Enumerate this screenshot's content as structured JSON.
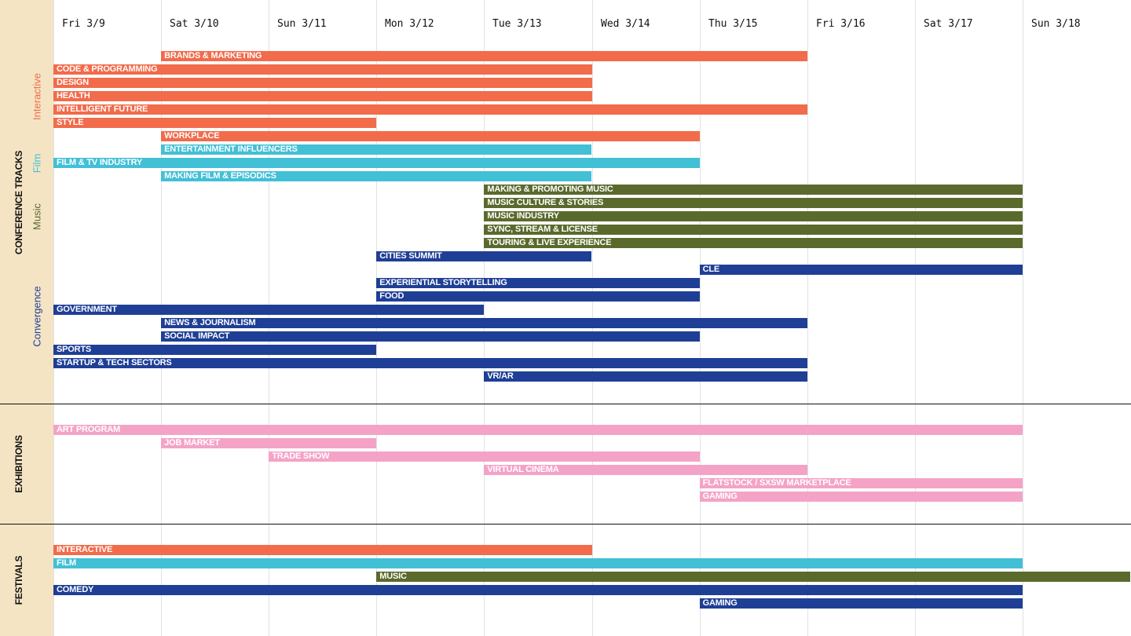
{
  "colors": {
    "interactive": "#f26b4a",
    "film": "#42c0d6",
    "music": "#5a6a2c",
    "convergence": "#1f3f96",
    "exhibition": "#f4a3c7",
    "sidebar": "#f4e4c4"
  },
  "chart_data": {
    "type": "table",
    "days": [
      "Fri 3/9",
      "Sat 3/10",
      "Sun 3/11",
      "Mon 3/12",
      "Tue 3/13",
      "Wed 3/14",
      "Thu 3/15",
      "Fri 3/16",
      "Sat 3/17",
      "Sun 3/18"
    ],
    "sections": [
      {
        "label": "CONFERENCE TRACKS",
        "groups": [
          {
            "label": "Interactive",
            "color": "interactive",
            "bars": [
              {
                "label": "BRANDS & MARKETING",
                "start": 1,
                "end": 7
              },
              {
                "label": "CODE & PROGRAMMING",
                "start": 0,
                "end": 5
              },
              {
                "label": "DESIGN",
                "start": 0,
                "end": 5
              },
              {
                "label": "HEALTH",
                "start": 0,
                "end": 5
              },
              {
                "label": "INTELLIGENT FUTURE",
                "start": 0,
                "end": 7
              },
              {
                "label": "STYLE",
                "start": 0,
                "end": 3
              },
              {
                "label": "WORKPLACE",
                "start": 1,
                "end": 6
              }
            ]
          },
          {
            "label": "Film",
            "color": "film",
            "bars": [
              {
                "label": "ENTERTAINMENT INFLUENCERS",
                "start": 1,
                "end": 5
              },
              {
                "label": "FILM & TV INDUSTRY",
                "start": 0,
                "end": 6
              },
              {
                "label": "MAKING FILM & EPISODICS",
                "start": 1,
                "end": 5
              }
            ]
          },
          {
            "label": "Music",
            "color": "music",
            "bars": [
              {
                "label": "MAKING & PROMOTING MUSIC",
                "start": 4,
                "end": 9
              },
              {
                "label": "MUSIC CULTURE & STORIES",
                "start": 4,
                "end": 9
              },
              {
                "label": "MUSIC INDUSTRY",
                "start": 4,
                "end": 9
              },
              {
                "label": "SYNC, STREAM & LICENSE",
                "start": 4,
                "end": 9
              },
              {
                "label": "TOURING & LIVE EXPERIENCE",
                "start": 4,
                "end": 9
              }
            ]
          },
          {
            "label": "Convergence",
            "color": "convergence",
            "bars": [
              {
                "label": "CITIES SUMMIT",
                "start": 3,
                "end": 5
              },
              {
                "label": "CLE",
                "start": 6,
                "end": 9
              },
              {
                "label": "EXPERIENTIAL STORYTELLING",
                "start": 3,
                "end": 6
              },
              {
                "label": "FOOD",
                "start": 3,
                "end": 6
              },
              {
                "label": "GOVERNMENT",
                "start": 0,
                "end": 4
              },
              {
                "label": "NEWS & JOURNALISM",
                "start": 1,
                "end": 7
              },
              {
                "label": "SOCIAL IMPACT",
                "start": 1,
                "end": 6
              },
              {
                "label": "SPORTS",
                "start": 0,
                "end": 3
              },
              {
                "label": "STARTUP & TECH SECTORS",
                "start": 0,
                "end": 7
              },
              {
                "label": "VR/AR",
                "start": 4,
                "end": 7
              }
            ]
          }
        ]
      },
      {
        "label": "EXHIBITIONS",
        "groups": [
          {
            "label": "",
            "color": "exhibition",
            "bars": [
              {
                "label": "ART PROGRAM",
                "start": 0,
                "end": 9
              },
              {
                "label": "JOB MARKET",
                "start": 1,
                "end": 3
              },
              {
                "label": "TRADE SHOW",
                "start": 2,
                "end": 6
              },
              {
                "label": "VIRTUAL CINEMA",
                "start": 4,
                "end": 7
              },
              {
                "label": "FLATSTOCK / SXSW MARKETPLACE",
                "start": 6,
                "end": 9
              },
              {
                "label": "GAMING",
                "start": 6,
                "end": 9
              }
            ]
          }
        ]
      },
      {
        "label": "FESTIVALS",
        "groups": [
          {
            "label": "",
            "color": "",
            "bars": [
              {
                "label": "INTERACTIVE",
                "start": 0,
                "end": 5,
                "color": "interactive"
              },
              {
                "label": "FILM",
                "start": 0,
                "end": 9,
                "color": "film"
              },
              {
                "label": "MUSIC",
                "start": 3,
                "end": 10,
                "color": "music"
              },
              {
                "label": "COMEDY",
                "start": 0,
                "end": 9,
                "color": "convergence"
              },
              {
                "label": "GAMING",
                "start": 6,
                "end": 9,
                "color": "convergence"
              }
            ]
          }
        ]
      }
    ]
  }
}
